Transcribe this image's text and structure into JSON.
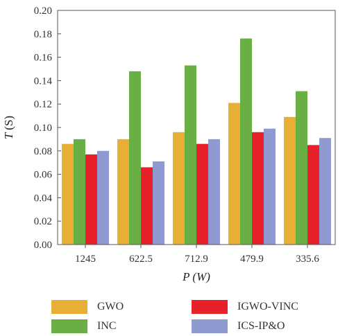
{
  "chart_data": {
    "type": "bar",
    "categories": [
      "1245",
      "622.5",
      "712.9",
      "479.9",
      "335.6"
    ],
    "series": [
      {
        "name": "GWO",
        "color": "#E8AF36",
        "values": [
          0.086,
          0.09,
          0.096,
          0.121,
          0.109
        ]
      },
      {
        "name": "INC",
        "color": "#6AAF44",
        "values": [
          0.09,
          0.148,
          0.153,
          0.176,
          0.131
        ]
      },
      {
        "name": "IGWO-VINC",
        "color": "#E8202A",
        "values": [
          0.077,
          0.066,
          0.086,
          0.096,
          0.085
        ]
      },
      {
        "name": "ICS-IP&O",
        "color": "#8F9BD0",
        "values": [
          0.08,
          0.071,
          0.09,
          0.099,
          0.091
        ]
      }
    ],
    "ylim": [
      0,
      0.2
    ],
    "yticks": [
      "0.00",
      "0.02",
      "0.04",
      "0.06",
      "0.08",
      "0.10",
      "0.12",
      "0.14",
      "0.16",
      "0.18",
      "0.20"
    ],
    "ylabel": {
      "main": "T",
      "unit": "(S)"
    },
    "xlabel": {
      "main": "P",
      "unit": "(W)"
    },
    "legend_position": "bottom"
  }
}
